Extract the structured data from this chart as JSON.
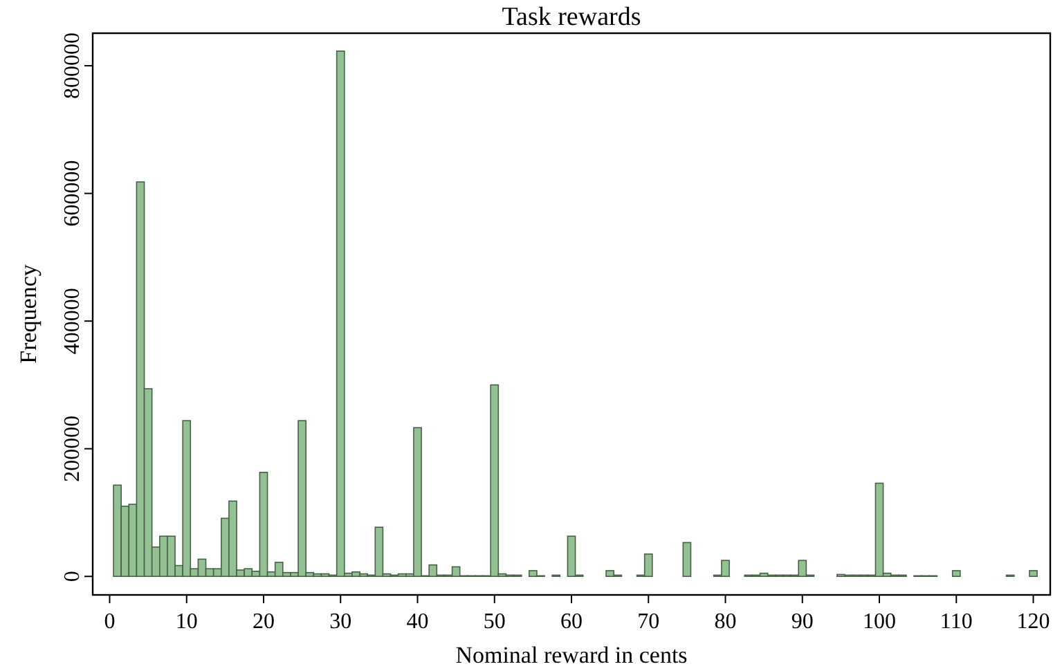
{
  "chart_data": {
    "type": "histogram",
    "title": "Task rewards",
    "xlabel": "Nominal reward in cents",
    "ylabel": "Frequency",
    "color": "#93c193",
    "bins": [
      0.5,
      1.5,
      2.5,
      3.5,
      4.5,
      5.5,
      6.5,
      7.5,
      8.5,
      9.5,
      10.5,
      11.5,
      12.5,
      13.5,
      14.5,
      15.5,
      16.5,
      17.5,
      18.5,
      19.5,
      20.5,
      21.5,
      22.5,
      23.5,
      24.5,
      25.5,
      26.5,
      27.5,
      28.5,
      29.5,
      30.5,
      31.5,
      32.5,
      33.5,
      34.5,
      35.5,
      36.5,
      37.5,
      38.5,
      39.5,
      40.5,
      41.5,
      42.5,
      43.5,
      44.5,
      45.5,
      46.5,
      47.5,
      48.5,
      49.5,
      50.5,
      51.5,
      52.5,
      53.5,
      54.5,
      55.5,
      56.5,
      57.5,
      58.5,
      59.5,
      60.5,
      61.5,
      62.5,
      63.5,
      64.5,
      65.5,
      66.5,
      67.5,
      68.5,
      69.5,
      70.5,
      71.5,
      72.5,
      73.5,
      74.5,
      75.5,
      76.5,
      77.5,
      78.5,
      79.5,
      80.5,
      81.5,
      82.5,
      83.5,
      84.5,
      85.5,
      86.5,
      87.5,
      88.5,
      89.5,
      90.5,
      91.5,
      92.5,
      93.5,
      94.5,
      95.5,
      96.5,
      97.5,
      98.5,
      99.5,
      100.5,
      101.5,
      102.5,
      103.5,
      104.5,
      105.5,
      106.5,
      107.5,
      108.5,
      109.5,
      110.5,
      111.5,
      112.5,
      113.5,
      114.5,
      115.5,
      116.5,
      117.5,
      118.5,
      119.5,
      120.5
    ],
    "values": [
      143000,
      110000,
      113000,
      618000,
      294000,
      46000,
      63000,
      63000,
      17000,
      244000,
      12000,
      27000,
      12000,
      12000,
      91000,
      118000,
      10000,
      12000,
      8000,
      163000,
      7000,
      22000,
      6000,
      6000,
      244000,
      6000,
      4000,
      4000,
      2000,
      823000,
      5000,
      7000,
      4000,
      2000,
      77000,
      4000,
      2000,
      4000,
      4000,
      233000,
      1000,
      18000,
      2000,
      2000,
      15000,
      1000,
      1000,
      1000,
      1000,
      300000,
      4000,
      2000,
      2000,
      0,
      9000,
      1000,
      0,
      2000,
      0,
      63000,
      2000,
      0,
      0,
      0,
      9000,
      2000,
      0,
      0,
      2000,
      35000,
      0,
      0,
      0,
      0,
      53000,
      0,
      0,
      0,
      2000,
      25000,
      0,
      0,
      2000,
      2000,
      5000,
      2000,
      2000,
      2000,
      2000,
      25000,
      2000,
      0,
      0,
      0,
      3000,
      2000,
      2000,
      2000,
      2000,
      146000,
      5000,
      2000,
      2000,
      0,
      1000,
      1000,
      1000,
      0,
      0,
      9000,
      0,
      0,
      0,
      0,
      0,
      0,
      2000,
      0,
      0,
      9000
    ],
    "xlim": [
      -2.2,
      122.2
    ],
    "ylim": [
      -29000,
      851000
    ],
    "xticks": [
      0,
      10,
      20,
      30,
      40,
      50,
      60,
      70,
      80,
      90,
      100,
      110,
      120
    ],
    "yticks": [
      0,
      200000,
      400000,
      600000,
      800000
    ],
    "grid": false
  }
}
